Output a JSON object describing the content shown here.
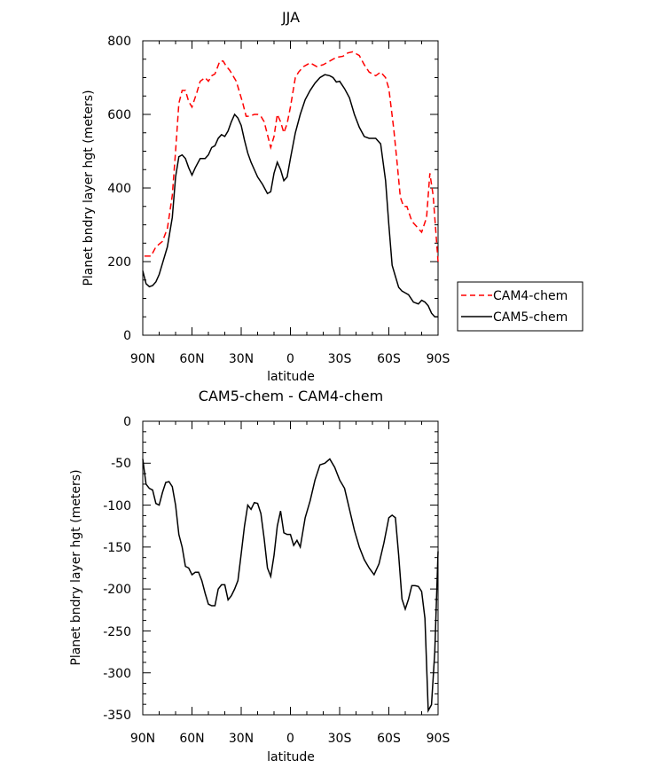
{
  "chart_data": [
    {
      "type": "line",
      "title": "JJA",
      "xlabel": "latitude",
      "ylabel": "Planet bndry layer hgt (meters)",
      "xlim": [
        -90,
        90
      ],
      "ylim": [
        0,
        800
      ],
      "xticks": [
        -90,
        -60,
        -30,
        0,
        30,
        60,
        90
      ],
      "xtick_labels": [
        "90N",
        "60N",
        "30N",
        "0",
        "30S",
        "60S",
        "90S"
      ],
      "yticks": [
        0,
        200,
        400,
        600,
        800
      ],
      "ytick_labels": [
        "0",
        "200",
        "400",
        "600",
        "800"
      ],
      "legend": {
        "position": "right",
        "entries": [
          "CAM4-chem",
          "CAM5-chem"
        ]
      },
      "series": [
        {
          "name": "CAM4-chem",
          "color": "#ff0000",
          "dash": true,
          "x": [
            -89,
            -85,
            -82,
            -78,
            -75,
            -72,
            -70,
            -68,
            -66,
            -64,
            -62,
            -60,
            -57,
            -55,
            -52,
            -50,
            -48,
            -46,
            -43,
            -41,
            -39,
            -37,
            -35,
            -33,
            -31,
            -29,
            -27,
            -25,
            -22,
            -20,
            -18,
            -16,
            -14,
            -12,
            -10,
            -8,
            -6,
            -4,
            -2,
            0,
            3,
            5,
            8,
            12,
            16,
            20,
            24,
            28,
            32,
            35,
            38,
            42,
            45,
            48,
            52,
            55,
            58,
            60,
            63,
            65,
            67,
            69,
            71,
            74,
            77,
            80,
            83,
            85,
            87,
            90
          ],
          "values": [
            215,
            215,
            240,
            255,
            290,
            380,
            500,
            630,
            665,
            665,
            635,
            620,
            660,
            690,
            700,
            690,
            705,
            710,
            745,
            745,
            730,
            720,
            705,
            690,
            660,
            630,
            595,
            595,
            600,
            600,
            595,
            580,
            545,
            510,
            540,
            600,
            580,
            550,
            575,
            620,
            700,
            715,
            730,
            740,
            730,
            735,
            745,
            755,
            758,
            767,
            770,
            760,
            735,
            715,
            705,
            715,
            700,
            670,
            560,
            470,
            375,
            350,
            350,
            310,
            295,
            280,
            320,
            440,
            380,
            200
          ]
        },
        {
          "name": "CAM5-chem",
          "color": "#000000",
          "dash": false,
          "x": [
            -90,
            -88,
            -86,
            -84,
            -82,
            -80,
            -78,
            -75,
            -72,
            -70,
            -68,
            -66,
            -64,
            -62,
            -60,
            -58,
            -55,
            -52,
            -50,
            -48,
            -46,
            -44,
            -42,
            -40,
            -38,
            -36,
            -34,
            -32,
            -30,
            -28,
            -26,
            -24,
            -22,
            -20,
            -17,
            -14,
            -12,
            -10,
            -8,
            -6,
            -4,
            -2,
            0,
            3,
            6,
            9,
            12,
            15,
            18,
            21,
            24,
            26,
            28,
            30,
            33,
            36,
            39,
            42,
            45,
            48,
            52,
            55,
            58,
            60,
            62,
            64,
            66,
            68,
            70,
            72,
            75,
            78,
            80,
            82,
            84,
            86,
            88,
            90
          ],
          "values": [
            175,
            140,
            132,
            135,
            145,
            165,
            195,
            240,
            320,
            430,
            485,
            490,
            480,
            455,
            435,
            455,
            480,
            480,
            490,
            510,
            515,
            535,
            545,
            540,
            555,
            580,
            600,
            590,
            570,
            530,
            495,
            470,
            450,
            430,
            410,
            385,
            390,
            440,
            470,
            450,
            420,
            430,
            480,
            550,
            600,
            640,
            665,
            685,
            700,
            708,
            705,
            700,
            688,
            690,
            670,
            645,
            600,
            565,
            540,
            535,
            535,
            520,
            420,
            300,
            190,
            160,
            130,
            120,
            115,
            110,
            90,
            85,
            95,
            90,
            80,
            60,
            50,
            50
          ]
        }
      ]
    },
    {
      "type": "line",
      "title": "CAM5-chem - CAM4-chem",
      "xlabel": "latitude",
      "ylabel": "Planet bndry layer hgt (meters)",
      "xlim": [
        -90,
        90
      ],
      "ylim": [
        -350,
        0
      ],
      "xticks": [
        -90,
        -60,
        -30,
        0,
        30,
        60,
        90
      ],
      "xtick_labels": [
        "90N",
        "60N",
        "30N",
        "0",
        "30S",
        "60S",
        "90S"
      ],
      "yticks": [
        0,
        -50,
        -100,
        -150,
        -200,
        -250,
        -300,
        -350
      ],
      "ytick_labels": [
        "0",
        "-50",
        "-100",
        "-150",
        "-200",
        "-250",
        "-300",
        "-350"
      ],
      "series": [
        {
          "name": "CAM5-chem - CAM4-chem",
          "color": "#000000",
          "dash": false,
          "x": [
            -90,
            -88,
            -86,
            -84,
            -82,
            -80,
            -78,
            -76,
            -74,
            -72,
            -70,
            -68,
            -66,
            -64,
            -62,
            -60,
            -58,
            -56,
            -54,
            -52,
            -50,
            -48,
            -46,
            -44,
            -42,
            -40,
            -38,
            -36,
            -34,
            -32,
            -30,
            -28,
            -26,
            -24,
            -22,
            -20,
            -18,
            -16,
            -14,
            -12,
            -10,
            -8,
            -6,
            -4,
            -2,
            0,
            2,
            4,
            6,
            9,
            12,
            15,
            18,
            21,
            24,
            27,
            30,
            33,
            36,
            39,
            42,
            45,
            48,
            51,
            54,
            57,
            60,
            62,
            64,
            66,
            68,
            70,
            72,
            74,
            76,
            78,
            80,
            82,
            84,
            86,
            88,
            90
          ],
          "values": [
            -45,
            -75,
            -80,
            -82,
            -98,
            -100,
            -85,
            -73,
            -72,
            -78,
            -100,
            -135,
            -150,
            -173,
            -175,
            -183,
            -180,
            -180,
            -190,
            -205,
            -218,
            -220,
            -220,
            -200,
            -195,
            -195,
            -213,
            -208,
            -200,
            -190,
            -158,
            -125,
            -100,
            -105,
            -97,
            -98,
            -110,
            -140,
            -175,
            -185,
            -160,
            -125,
            -107,
            -133,
            -135,
            -135,
            -148,
            -142,
            -150,
            -115,
            -95,
            -70,
            -52,
            -50,
            -45,
            -55,
            -70,
            -80,
            -105,
            -130,
            -150,
            -165,
            -175,
            -183,
            -170,
            -145,
            -115,
            -112,
            -115,
            -160,
            -212,
            -224,
            -212,
            -196,
            -196,
            -197,
            -203,
            -235,
            -345,
            -338,
            -275,
            -155
          ]
        }
      ]
    }
  ]
}
